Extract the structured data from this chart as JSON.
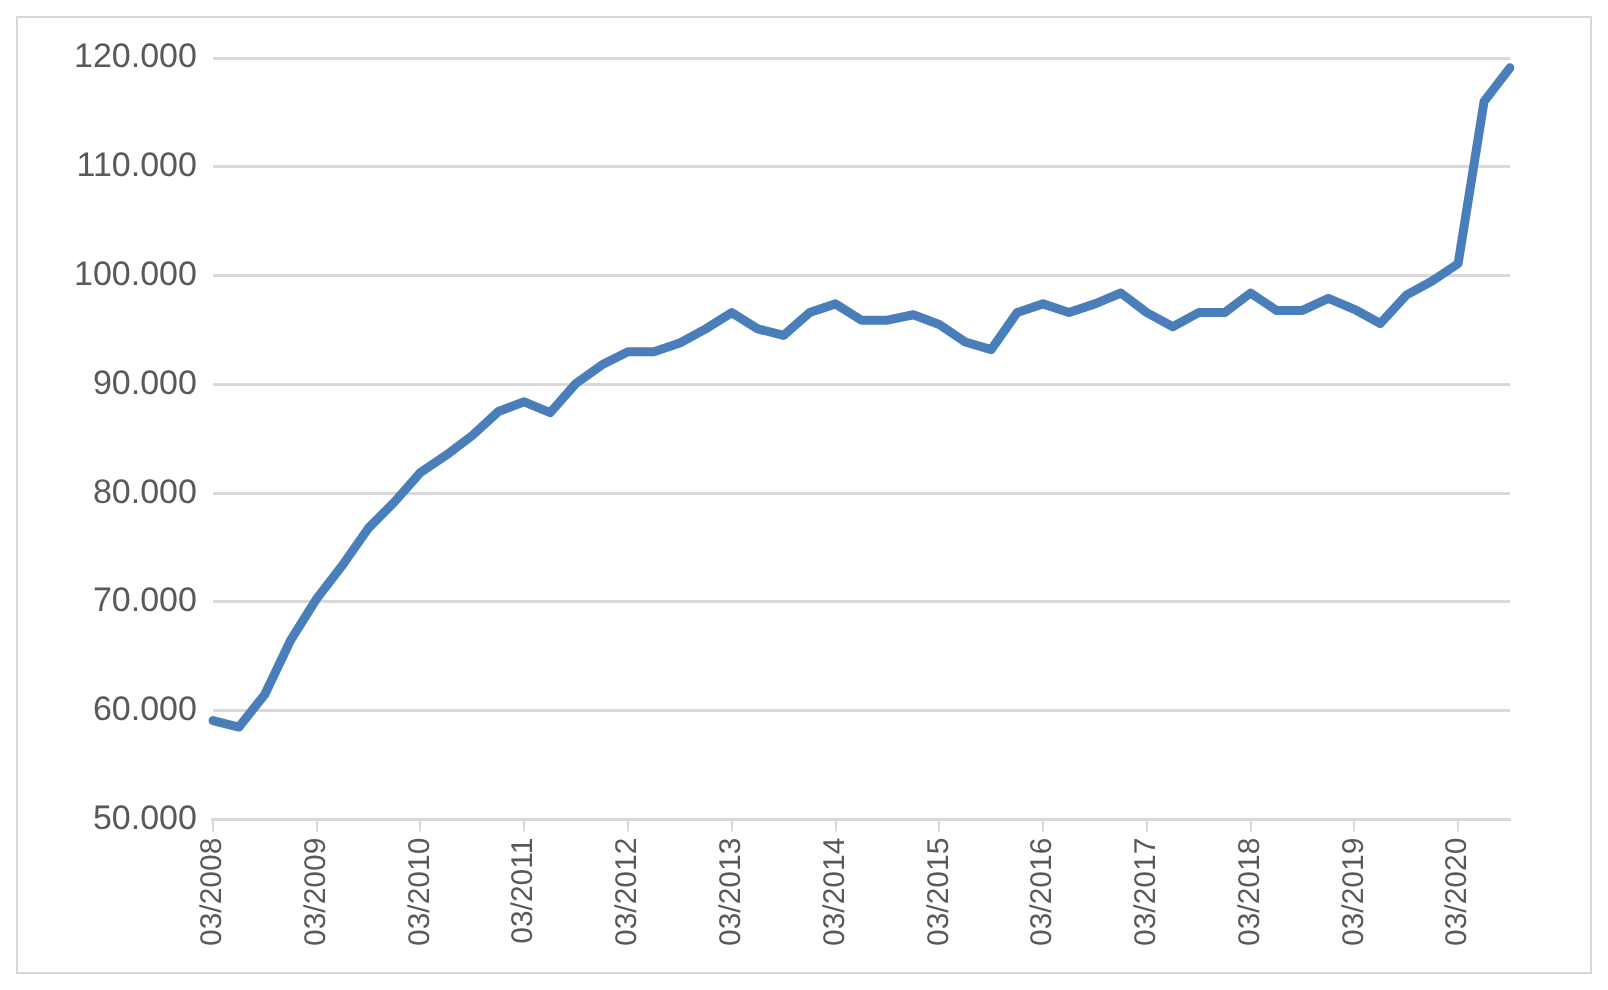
{
  "chart_data": {
    "type": "line",
    "categories": [
      "03/2008",
      null,
      null,
      null,
      "03/2009",
      null,
      null,
      null,
      "03/2010",
      null,
      null,
      null,
      "03/2011",
      null,
      null,
      null,
      "03/2012",
      null,
      null,
      null,
      "03/2013",
      null,
      null,
      null,
      "03/2014",
      null,
      null,
      null,
      "03/2015",
      null,
      null,
      null,
      "03/2016",
      null,
      null,
      null,
      "03/2017",
      null,
      null,
      null,
      "03/2018",
      null,
      null,
      null,
      "03/2019",
      null,
      null,
      null,
      "03/2020",
      null,
      null
    ],
    "series": [
      {
        "color": "#4a7ebb",
        "values": [
          59.1,
          58.5,
          61.5,
          66.5,
          70.3,
          73.4,
          76.8,
          79.2,
          81.9,
          83.5,
          85.3,
          87.5,
          88.4,
          87.4,
          90.1,
          91.8,
          93.0,
          93.0,
          93.8,
          95.1,
          96.6,
          95.1,
          94.5,
          96.6,
          97.4,
          95.9,
          95.9,
          96.4,
          95.5,
          93.9,
          93.2,
          96.6,
          97.4,
          96.6,
          97.4,
          98.4,
          96.6,
          95.3,
          96.6,
          96.6,
          98.4,
          96.8,
          96.8,
          97.9,
          96.9,
          95.6,
          98.2,
          99.5,
          101.1,
          116.0,
          119.1
        ]
      }
    ],
    "ylim": [
      50,
      120
    ],
    "yticks": [
      {
        "value": 50,
        "label": "50.000"
      },
      {
        "value": 60,
        "label": "60.000"
      },
      {
        "value": 70,
        "label": "70.000"
      },
      {
        "value": 80,
        "label": "80.000"
      },
      {
        "value": 90,
        "label": "90.000"
      },
      {
        "value": 100,
        "label": "100.000"
      },
      {
        "value": 110,
        "label": "110.000"
      },
      {
        "value": 120,
        "label": "120.000"
      }
    ],
    "grid": "y",
    "legend": false,
    "marker": "none",
    "line_style": "solid"
  }
}
